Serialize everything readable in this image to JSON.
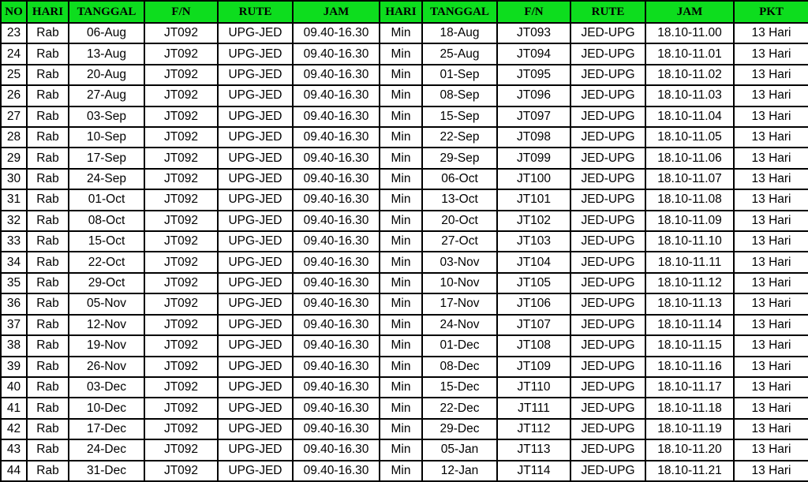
{
  "table": {
    "columns": [
      "NO",
      "HARI",
      "TANGGAL",
      "F/N",
      "RUTE",
      "JAM",
      "HARI",
      "TANGGAL",
      "F/N",
      "RUTE",
      "JAM",
      "PKT"
    ],
    "rows": [
      [
        "23",
        "Rab",
        "06-Aug",
        "JT092",
        "UPG-JED",
        "09.40-16.30",
        "Min",
        "18-Aug",
        "JT093",
        "JED-UPG",
        "18.10-11.00",
        "13 Hari"
      ],
      [
        "24",
        "Rab",
        "13-Aug",
        "JT092",
        "UPG-JED",
        "09.40-16.30",
        "Min",
        "25-Aug",
        "JT094",
        "JED-UPG",
        "18.10-11.01",
        "13 Hari"
      ],
      [
        "25",
        "Rab",
        "20-Aug",
        "JT092",
        "UPG-JED",
        "09.40-16.30",
        "Min",
        "01-Sep",
        "JT095",
        "JED-UPG",
        "18.10-11.02",
        "13 Hari"
      ],
      [
        "26",
        "Rab",
        "27-Aug",
        "JT092",
        "UPG-JED",
        "09.40-16.30",
        "Min",
        "08-Sep",
        "JT096",
        "JED-UPG",
        "18.10-11.03",
        "13 Hari"
      ],
      [
        "27",
        "Rab",
        "03-Sep",
        "JT092",
        "UPG-JED",
        "09.40-16.30",
        "Min",
        "15-Sep",
        "JT097",
        "JED-UPG",
        "18.10-11.04",
        "13 Hari"
      ],
      [
        "28",
        "Rab",
        "10-Sep",
        "JT092",
        "UPG-JED",
        "09.40-16.30",
        "Min",
        "22-Sep",
        "JT098",
        "JED-UPG",
        "18.10-11.05",
        "13 Hari"
      ],
      [
        "29",
        "Rab",
        "17-Sep",
        "JT092",
        "UPG-JED",
        "09.40-16.30",
        "Min",
        "29-Sep",
        "JT099",
        "JED-UPG",
        "18.10-11.06",
        "13 Hari"
      ],
      [
        "30",
        "Rab",
        "24-Sep",
        "JT092",
        "UPG-JED",
        "09.40-16.30",
        "Min",
        "06-Oct",
        "JT100",
        "JED-UPG",
        "18.10-11.07",
        "13 Hari"
      ],
      [
        "31",
        "Rab",
        "01-Oct",
        "JT092",
        "UPG-JED",
        "09.40-16.30",
        "Min",
        "13-Oct",
        "JT101",
        "JED-UPG",
        "18.10-11.08",
        "13 Hari"
      ],
      [
        "32",
        "Rab",
        "08-Oct",
        "JT092",
        "UPG-JED",
        "09.40-16.30",
        "Min",
        "20-Oct",
        "JT102",
        "JED-UPG",
        "18.10-11.09",
        "13 Hari"
      ],
      [
        "33",
        "Rab",
        "15-Oct",
        "JT092",
        "UPG-JED",
        "09.40-16.30",
        "Min",
        "27-Oct",
        "JT103",
        "JED-UPG",
        "18.10-11.10",
        "13 Hari"
      ],
      [
        "34",
        "Rab",
        "22-Oct",
        "JT092",
        "UPG-JED",
        "09.40-16.30",
        "Min",
        "03-Nov",
        "JT104",
        "JED-UPG",
        "18.10-11.11",
        "13 Hari"
      ],
      [
        "35",
        "Rab",
        "29-Oct",
        "JT092",
        "UPG-JED",
        "09.40-16.30",
        "Min",
        "10-Nov",
        "JT105",
        "JED-UPG",
        "18.10-11.12",
        "13 Hari"
      ],
      [
        "36",
        "Rab",
        "05-Nov",
        "JT092",
        "UPG-JED",
        "09.40-16.30",
        "Min",
        "17-Nov",
        "JT106",
        "JED-UPG",
        "18.10-11.13",
        "13 Hari"
      ],
      [
        "37",
        "Rab",
        "12-Nov",
        "JT092",
        "UPG-JED",
        "09.40-16.30",
        "Min",
        "24-Nov",
        "JT107",
        "JED-UPG",
        "18.10-11.14",
        "13 Hari"
      ],
      [
        "38",
        "Rab",
        "19-Nov",
        "JT092",
        "UPG-JED",
        "09.40-16.30",
        "Min",
        "01-Dec",
        "JT108",
        "JED-UPG",
        "18.10-11.15",
        "13 Hari"
      ],
      [
        "39",
        "Rab",
        "26-Nov",
        "JT092",
        "UPG-JED",
        "09.40-16.30",
        "Min",
        "08-Dec",
        "JT109",
        "JED-UPG",
        "18.10-11.16",
        "13 Hari"
      ],
      [
        "40",
        "Rab",
        "03-Dec",
        "JT092",
        "UPG-JED",
        "09.40-16.30",
        "Min",
        "15-Dec",
        "JT110",
        "JED-UPG",
        "18.10-11.17",
        "13 Hari"
      ],
      [
        "41",
        "Rab",
        "10-Dec",
        "JT092",
        "UPG-JED",
        "09.40-16.30",
        "Min",
        "22-Dec",
        "JT111",
        "JED-UPG",
        "18.10-11.18",
        "13 Hari"
      ],
      [
        "42",
        "Rab",
        "17-Dec",
        "JT092",
        "UPG-JED",
        "09.40-16.30",
        "Min",
        "29-Dec",
        "JT112",
        "JED-UPG",
        "18.10-11.19",
        "13 Hari"
      ],
      [
        "43",
        "Rab",
        "24-Dec",
        "JT092",
        "UPG-JED",
        "09.40-16.30",
        "Min",
        "05-Jan",
        "JT113",
        "JED-UPG",
        "18.10-11.20",
        "13 Hari"
      ],
      [
        "44",
        "Rab",
        "31-Dec",
        "JT092",
        "UPG-JED",
        "09.40-16.30",
        "Min",
        "12-Jan",
        "JT114",
        "JED-UPG",
        "18.10-11.21",
        "13 Hari"
      ]
    ],
    "colors": {
      "header_bg": "#0ddd1e",
      "header_text": "#000000",
      "border": "#000000",
      "cell_bg": "#ffffff",
      "cell_text": "#000000"
    }
  }
}
